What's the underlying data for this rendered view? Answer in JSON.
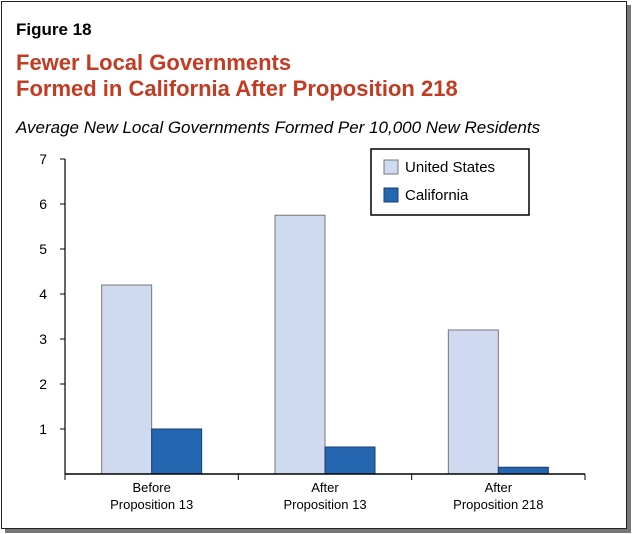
{
  "figure_label": "Figure 18",
  "title_lines": [
    "Fewer Local Governments",
    "Formed in California After Proposition 218"
  ],
  "subtitle": "Average New Local Governments Formed Per 10,000 New Residents",
  "colors": {
    "title": "#c23b22",
    "united_states": "#cfd9ef",
    "california": "#2566b0"
  },
  "chart_data": {
    "type": "bar",
    "title": "Fewer Local Governments Formed in California After Proposition 218",
    "ylabel": "Average New Local Governments Formed Per 10,000 New Residents",
    "categories": [
      [
        "Before",
        "Proposition 13"
      ],
      [
        "After",
        "Proposition 13"
      ],
      [
        "After",
        "Proposition 218"
      ]
    ],
    "series": [
      {
        "name": "United States",
        "values": [
          4.2,
          5.75,
          3.2
        ]
      },
      {
        "name": "California",
        "values": [
          1.0,
          0.6,
          0.15
        ]
      }
    ],
    "ylim": [
      0,
      7
    ],
    "yticks": [
      1,
      2,
      3,
      4,
      5,
      6,
      7
    ],
    "grid": false,
    "legend": "top-right"
  }
}
